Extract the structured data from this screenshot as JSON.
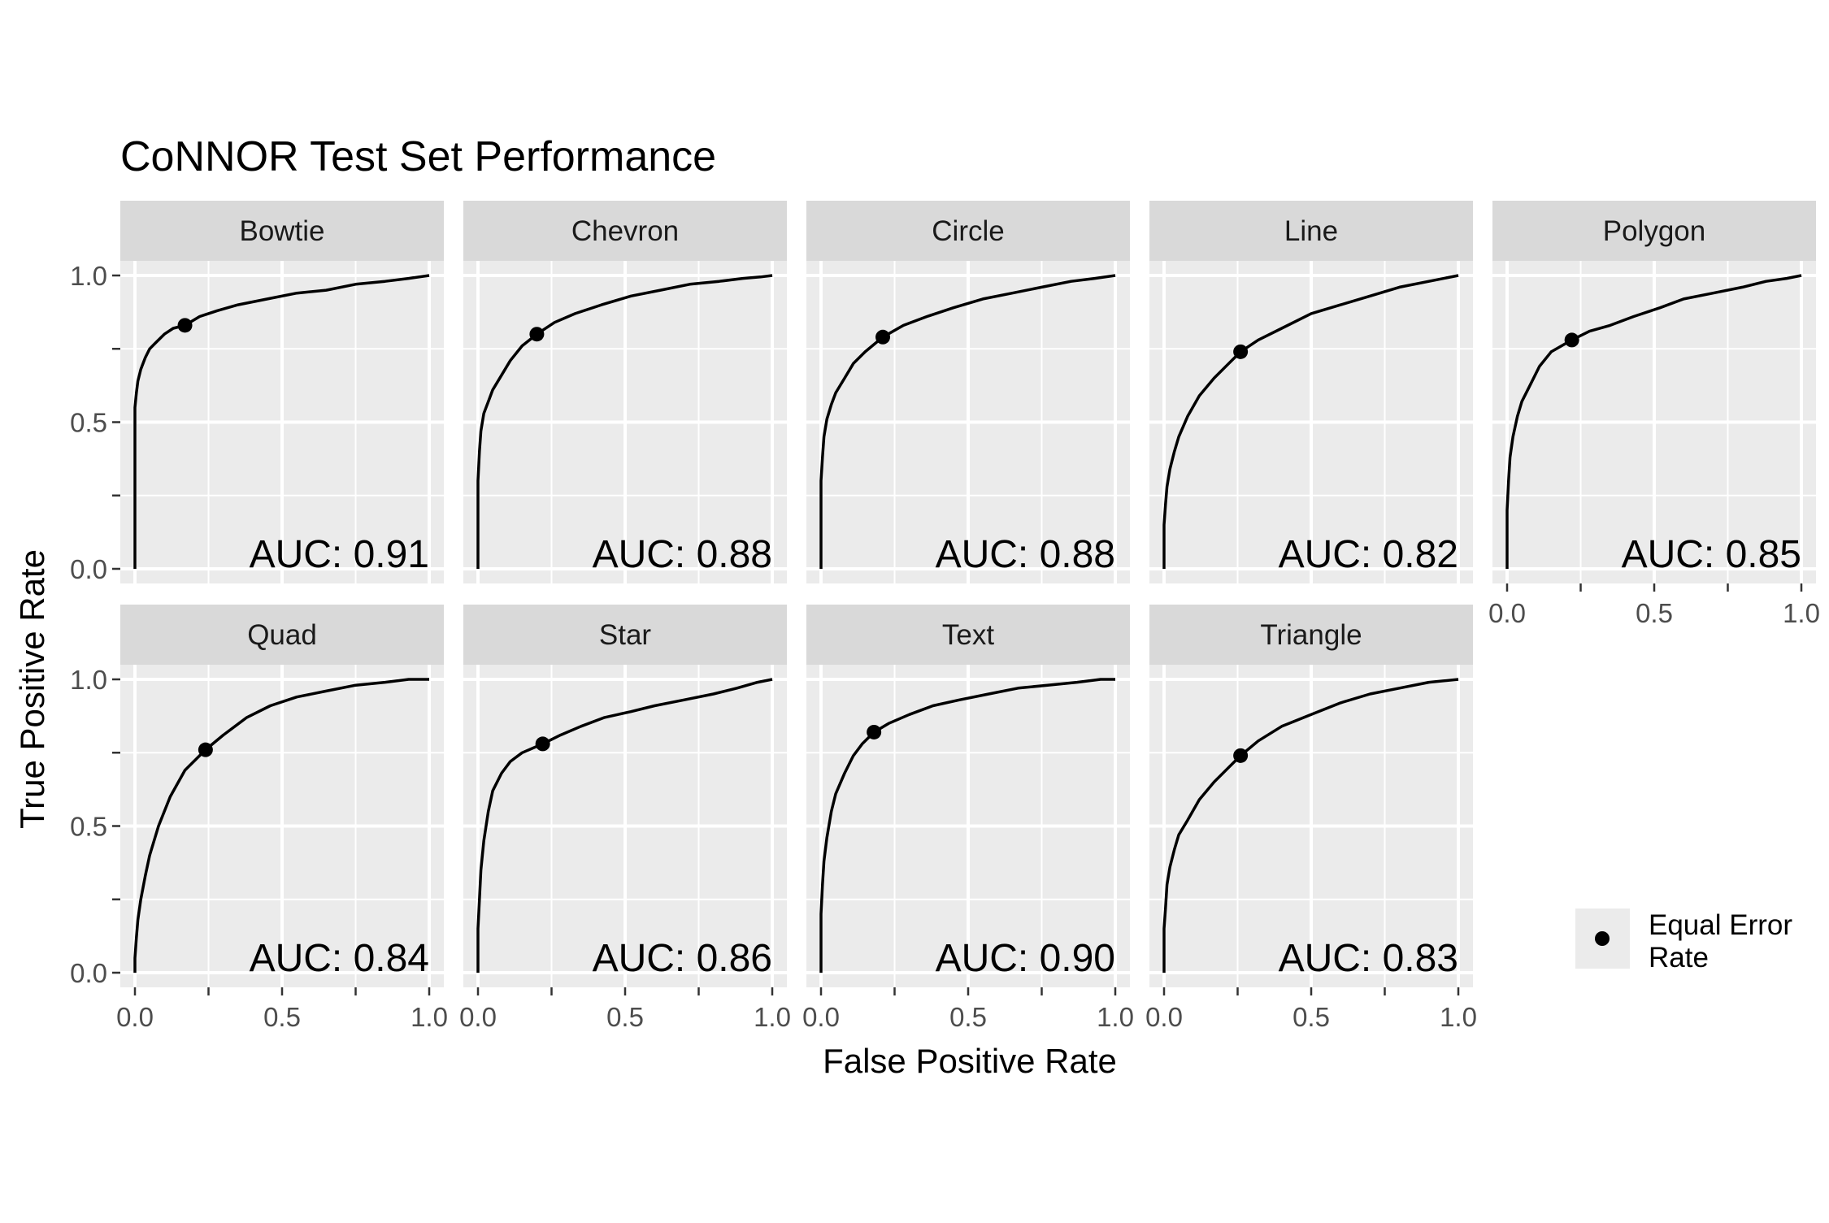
{
  "chart_data": {
    "type": "line",
    "title": "CoNNOR Test Set Performance",
    "xlabel": "False Positive Rate",
    "ylabel": "True Positive Rate",
    "xlim": [
      0,
      1
    ],
    "ylim": [
      0,
      1
    ],
    "x_ticks": [
      "0.0",
      "0.5",
      "1.0"
    ],
    "y_ticks": [
      "0.0",
      "0.5",
      "1.0"
    ],
    "grid": true,
    "legend": {
      "position": "right",
      "entries": [
        "Equal Error Rate"
      ]
    },
    "panels": [
      {
        "name": "Bowtie",
        "auc_label": "AUC: 0.91",
        "eer": [
          0.17,
          0.83
        ],
        "fpr": [
          0,
          0.0,
          0.005,
          0.01,
          0.02,
          0.035,
          0.05,
          0.07,
          0.1,
          0.13,
          0.17,
          0.22,
          0.28,
          0.35,
          0.45,
          0.55,
          0.65,
          0.75,
          0.85,
          0.93,
          1.0
        ],
        "tpr": [
          0,
          0.55,
          0.6,
          0.64,
          0.68,
          0.72,
          0.75,
          0.77,
          0.8,
          0.82,
          0.83,
          0.86,
          0.88,
          0.9,
          0.92,
          0.94,
          0.95,
          0.97,
          0.98,
          0.99,
          1.0
        ]
      },
      {
        "name": "Chevron",
        "auc_label": "AUC: 0.88",
        "eer": [
          0.2,
          0.8
        ],
        "fpr": [
          0,
          0.0,
          0.005,
          0.01,
          0.02,
          0.035,
          0.05,
          0.08,
          0.11,
          0.15,
          0.2,
          0.26,
          0.33,
          0.42,
          0.52,
          0.62,
          0.72,
          0.82,
          0.9,
          0.96,
          1.0
        ],
        "tpr": [
          0,
          0.3,
          0.4,
          0.47,
          0.53,
          0.57,
          0.61,
          0.66,
          0.71,
          0.76,
          0.8,
          0.84,
          0.87,
          0.9,
          0.93,
          0.95,
          0.97,
          0.98,
          0.99,
          0.995,
          1.0
        ]
      },
      {
        "name": "Circle",
        "auc_label": "AUC: 0.88",
        "eer": [
          0.21,
          0.79
        ],
        "fpr": [
          0,
          0.0,
          0.005,
          0.01,
          0.02,
          0.035,
          0.05,
          0.08,
          0.11,
          0.15,
          0.21,
          0.28,
          0.36,
          0.45,
          0.55,
          0.65,
          0.75,
          0.85,
          0.93,
          1.0
        ],
        "tpr": [
          0,
          0.3,
          0.38,
          0.45,
          0.51,
          0.56,
          0.6,
          0.65,
          0.7,
          0.74,
          0.79,
          0.83,
          0.86,
          0.89,
          0.92,
          0.94,
          0.96,
          0.98,
          0.99,
          1.0
        ]
      },
      {
        "name": "Line",
        "auc_label": "AUC: 0.82",
        "eer": [
          0.26,
          0.74
        ],
        "fpr": [
          0,
          0.0,
          0.005,
          0.01,
          0.02,
          0.035,
          0.05,
          0.08,
          0.12,
          0.17,
          0.22,
          0.26,
          0.32,
          0.4,
          0.5,
          0.6,
          0.7,
          0.8,
          0.9,
          1.0
        ],
        "tpr": [
          0,
          0.15,
          0.22,
          0.28,
          0.34,
          0.4,
          0.45,
          0.52,
          0.59,
          0.65,
          0.7,
          0.74,
          0.78,
          0.82,
          0.87,
          0.9,
          0.93,
          0.96,
          0.98,
          1.0
        ]
      },
      {
        "name": "Polygon",
        "auc_label": "AUC: 0.85",
        "eer": [
          0.22,
          0.78
        ],
        "fpr": [
          0,
          0.0,
          0.005,
          0.01,
          0.02,
          0.035,
          0.05,
          0.08,
          0.11,
          0.15,
          0.22,
          0.28,
          0.35,
          0.43,
          0.52,
          0.6,
          0.7,
          0.8,
          0.88,
          0.95,
          1.0
        ],
        "tpr": [
          0,
          0.2,
          0.3,
          0.38,
          0.45,
          0.52,
          0.57,
          0.63,
          0.69,
          0.74,
          0.78,
          0.81,
          0.83,
          0.86,
          0.89,
          0.92,
          0.94,
          0.96,
          0.98,
          0.99,
          1.0
        ]
      },
      {
        "name": "Quad",
        "auc_label": "AUC: 0.84",
        "eer": [
          0.24,
          0.76
        ],
        "fpr": [
          0,
          0.0,
          0.005,
          0.01,
          0.02,
          0.035,
          0.05,
          0.08,
          0.12,
          0.17,
          0.24,
          0.3,
          0.38,
          0.46,
          0.55,
          0.65,
          0.75,
          0.85,
          0.93,
          1.0
        ],
        "tpr": [
          0,
          0.05,
          0.12,
          0.18,
          0.25,
          0.33,
          0.4,
          0.5,
          0.6,
          0.69,
          0.76,
          0.81,
          0.87,
          0.91,
          0.94,
          0.96,
          0.98,
          0.99,
          1.0,
          1.0
        ]
      },
      {
        "name": "Star",
        "auc_label": "AUC: 0.86",
        "eer": [
          0.22,
          0.78
        ],
        "fpr": [
          0,
          0.0,
          0.005,
          0.01,
          0.02,
          0.035,
          0.05,
          0.08,
          0.11,
          0.15,
          0.22,
          0.28,
          0.35,
          0.43,
          0.52,
          0.6,
          0.7,
          0.8,
          0.88,
          0.95,
          1.0
        ],
        "tpr": [
          0,
          0.15,
          0.25,
          0.35,
          0.45,
          0.55,
          0.62,
          0.68,
          0.72,
          0.75,
          0.78,
          0.81,
          0.84,
          0.87,
          0.89,
          0.91,
          0.93,
          0.95,
          0.97,
          0.99,
          1.0
        ]
      },
      {
        "name": "Text",
        "auc_label": "AUC: 0.90",
        "eer": [
          0.18,
          0.82
        ],
        "fpr": [
          0,
          0.0,
          0.005,
          0.01,
          0.02,
          0.035,
          0.05,
          0.08,
          0.11,
          0.14,
          0.18,
          0.23,
          0.3,
          0.38,
          0.47,
          0.57,
          0.67,
          0.77,
          0.87,
          0.95,
          1.0
        ],
        "tpr": [
          0,
          0.2,
          0.3,
          0.38,
          0.46,
          0.55,
          0.61,
          0.68,
          0.74,
          0.78,
          0.82,
          0.85,
          0.88,
          0.91,
          0.93,
          0.95,
          0.97,
          0.98,
          0.99,
          1.0,
          1.0
        ]
      },
      {
        "name": "Triangle",
        "auc_label": "AUC: 0.83",
        "eer": [
          0.26,
          0.74
        ],
        "fpr": [
          0,
          0.0,
          0.005,
          0.01,
          0.02,
          0.035,
          0.05,
          0.08,
          0.12,
          0.17,
          0.22,
          0.26,
          0.32,
          0.4,
          0.5,
          0.6,
          0.7,
          0.8,
          0.9,
          1.0
        ],
        "tpr": [
          0,
          0.15,
          0.22,
          0.3,
          0.36,
          0.42,
          0.47,
          0.52,
          0.59,
          0.65,
          0.7,
          0.74,
          0.79,
          0.84,
          0.88,
          0.92,
          0.95,
          0.97,
          0.99,
          1.0
        ]
      }
    ]
  }
}
